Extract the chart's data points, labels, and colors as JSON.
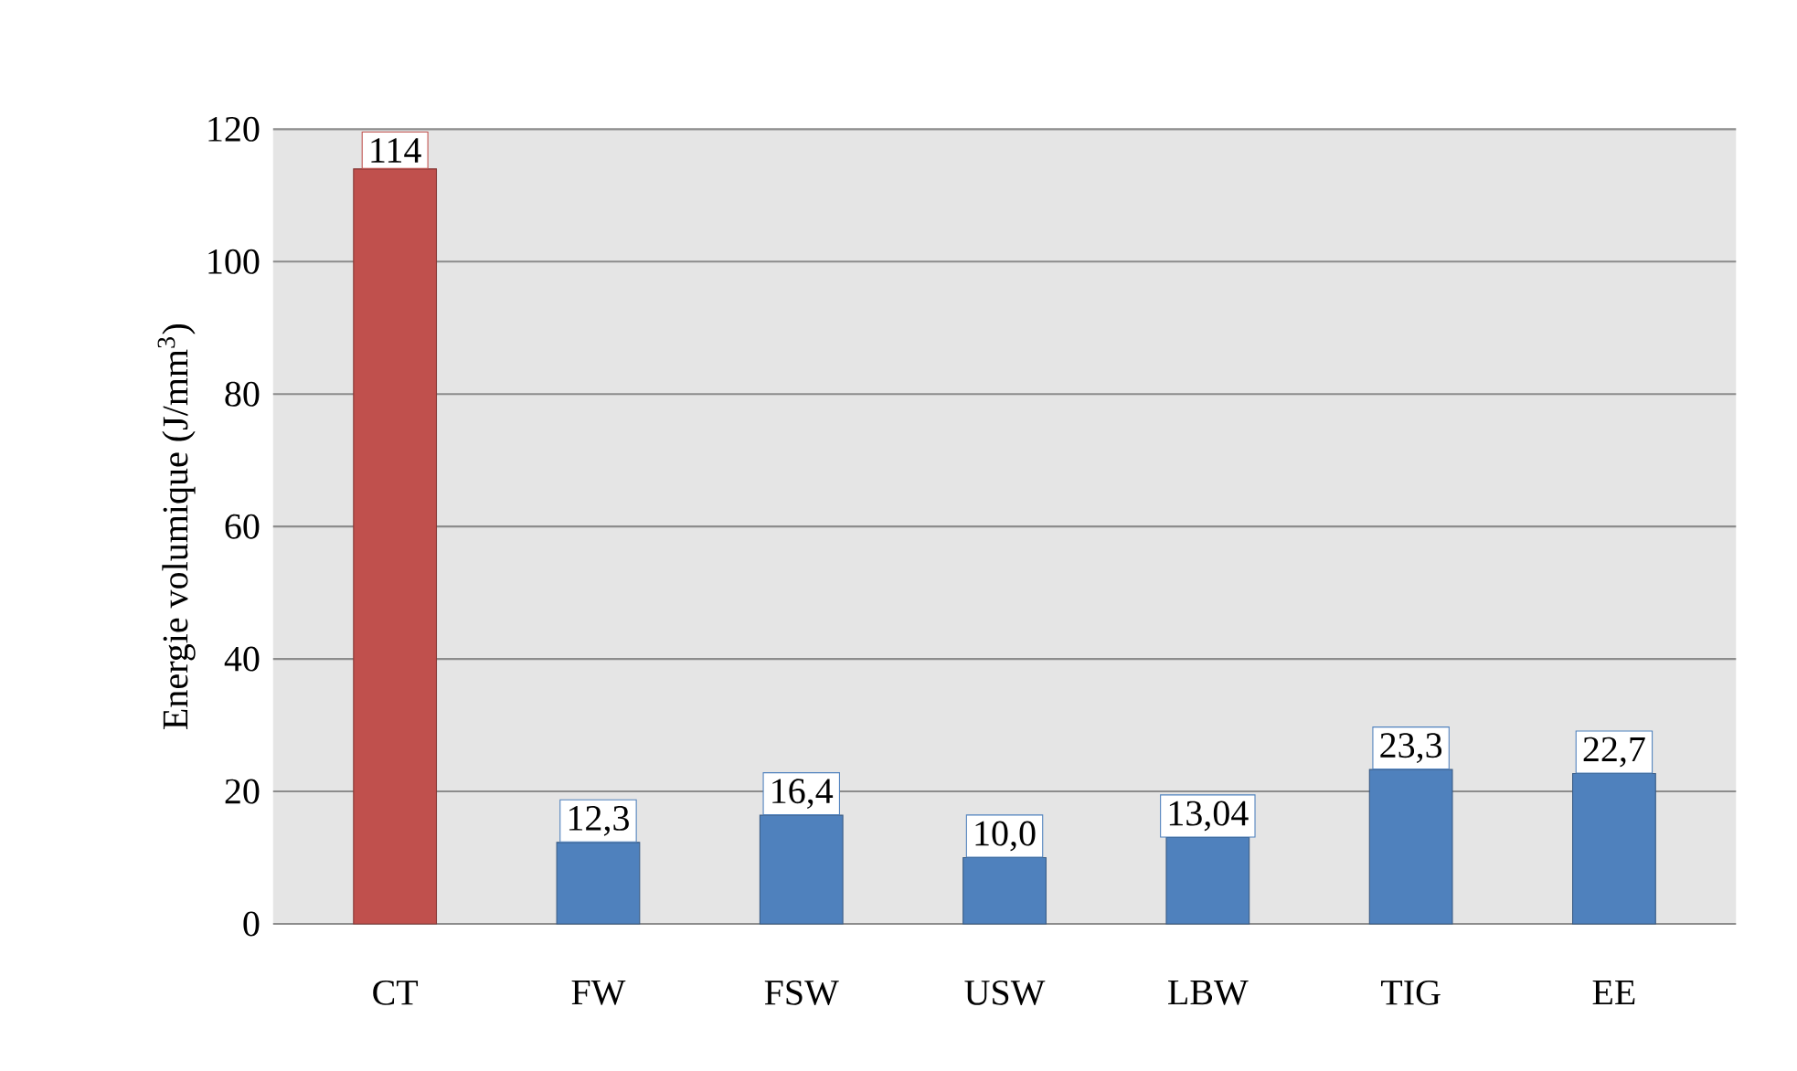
{
  "chart_data": {
    "type": "bar",
    "ylabel": "Energie volumique (J/mm$^{3}$)",
    "categories": [
      "CT",
      "FW",
      "FSW",
      "USW",
      "LBW",
      "TIG",
      "EE"
    ],
    "values": [
      114,
      12.3,
      16.4,
      10.0,
      13.04,
      23.3,
      22.7
    ],
    "value_labels": [
      "114",
      "12,3",
      "16,4",
      "10,0",
      "13,04",
      "23,3",
      "22,7"
    ],
    "colors": [
      "#c0504d",
      "#4f81bd",
      "#4f81bd",
      "#4f81bd",
      "#4f81bd",
      "#4f81bd",
      "#4f81bd"
    ],
    "ylim": [
      0,
      120
    ],
    "yticks": [
      0,
      20,
      40,
      60,
      80,
      100,
      120
    ],
    "grid": "y"
  }
}
